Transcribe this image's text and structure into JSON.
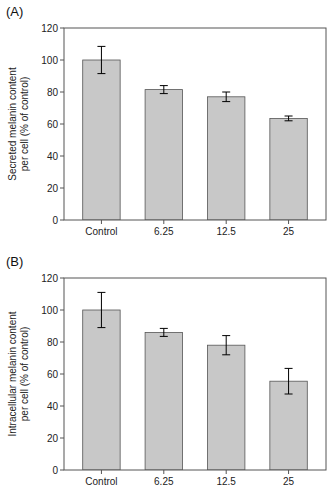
{
  "chart_data": [
    {
      "type": "bar",
      "title": "(A)",
      "categories": [
        "Control",
        "6.25",
        "12.5",
        "25"
      ],
      "values": [
        100.0,
        81.5,
        77.0,
        63.5
      ],
      "errors": [
        8.5,
        2.5,
        3.0,
        1.5
      ],
      "ylabel": "Secreted melanin content per cell (% of control)",
      "color": "#c8c8c8",
      "ylim": [
        0,
        120
      ],
      "yticks": [
        0,
        20,
        40,
        60,
        80,
        100,
        120
      ],
      "grid": false
    },
    {
      "type": "bar",
      "title": "(B)",
      "categories": [
        "Control",
        "6.25",
        "12.5",
        "25"
      ],
      "values": [
        100.0,
        86.0,
        78.0,
        55.5
      ],
      "errors": [
        11.0,
        2.5,
        6.0,
        8.0
      ],
      "ylabel": "Intracellular melanin content per cell (% of control)",
      "color": "#c8c8c8",
      "ylim": [
        0,
        120
      ],
      "yticks": [
        0,
        20,
        40,
        60,
        80,
        100,
        120
      ],
      "grid": false
    }
  ]
}
